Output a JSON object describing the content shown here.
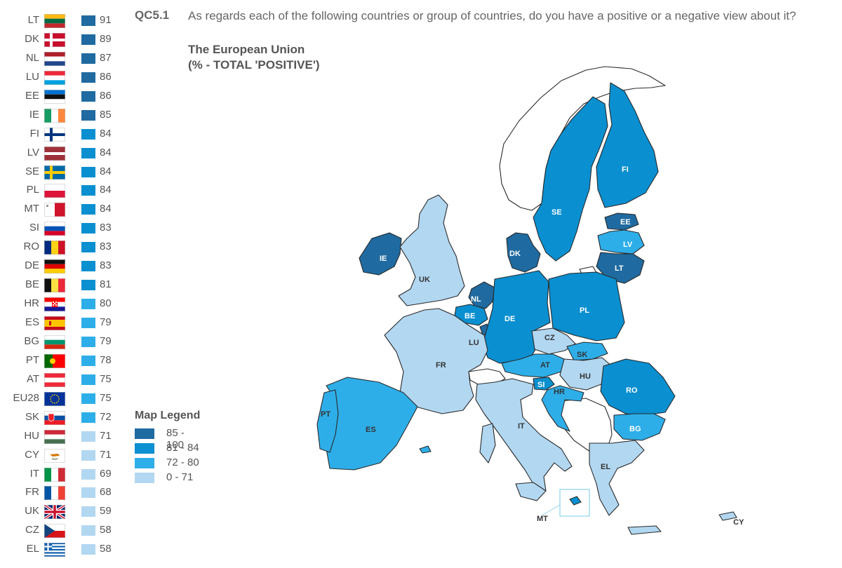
{
  "header": {
    "question_code": "QC5.1",
    "question_text": "As regards each of the following countries or group of countries, do you have a positive or a negative view about it?",
    "subtitle_line1": "The European Union",
    "subtitle_line2": "(% - TOTAL 'POSITIVE')"
  },
  "legend": {
    "title": "Map Legend",
    "items": [
      {
        "label": "85 - 100",
        "color": "#1f6aa0"
      },
      {
        "label": "81 - 84",
        "color": "#0a8fd0"
      },
      {
        "label": "72 - 80",
        "color": "#2eaee8"
      },
      {
        "label": "0 - 71",
        "color": "#b2d7f1"
      }
    ]
  },
  "ranking": [
    {
      "code": "LT",
      "value": "91",
      "flag": "lt",
      "color": "#1f6aa0"
    },
    {
      "code": "DK",
      "value": "89",
      "flag": "dk",
      "color": "#1f6aa0"
    },
    {
      "code": "NL",
      "value": "87",
      "flag": "nl",
      "color": "#1f6aa0"
    },
    {
      "code": "LU",
      "value": "86",
      "flag": "lu",
      "color": "#1f6aa0"
    },
    {
      "code": "EE",
      "value": "86",
      "flag": "ee",
      "color": "#1f6aa0"
    },
    {
      "code": "IE",
      "value": "85",
      "flag": "ie",
      "color": "#1f6aa0"
    },
    {
      "code": "FI",
      "value": "84",
      "flag": "fi",
      "color": "#0a8fd0"
    },
    {
      "code": "LV",
      "value": "84",
      "flag": "lv",
      "color": "#0a8fd0"
    },
    {
      "code": "SE",
      "value": "84",
      "flag": "se",
      "color": "#0a8fd0"
    },
    {
      "code": "PL",
      "value": "84",
      "flag": "pl",
      "color": "#0a8fd0"
    },
    {
      "code": "MT",
      "value": "84",
      "flag": "mt",
      "color": "#0a8fd0"
    },
    {
      "code": "SI",
      "value": "83",
      "flag": "si",
      "color": "#0a8fd0"
    },
    {
      "code": "RO",
      "value": "83",
      "flag": "ro",
      "color": "#0a8fd0"
    },
    {
      "code": "DE",
      "value": "83",
      "flag": "de",
      "color": "#0a8fd0"
    },
    {
      "code": "BE",
      "value": "81",
      "flag": "be",
      "color": "#0a8fd0"
    },
    {
      "code": "HR",
      "value": "80",
      "flag": "hr",
      "color": "#2eaee8"
    },
    {
      "code": "ES",
      "value": "79",
      "flag": "es",
      "color": "#2eaee8"
    },
    {
      "code": "BG",
      "value": "79",
      "flag": "bg",
      "color": "#2eaee8"
    },
    {
      "code": "PT",
      "value": "78",
      "flag": "pt",
      "color": "#2eaee8"
    },
    {
      "code": "AT",
      "value": "75",
      "flag": "at",
      "color": "#2eaee8"
    },
    {
      "code": "EU28",
      "value": "75",
      "flag": "eu",
      "color": "#2eaee8"
    },
    {
      "code": "SK",
      "value": "72",
      "flag": "sk",
      "color": "#2eaee8"
    },
    {
      "code": "HU",
      "value": "71",
      "flag": "hu",
      "color": "#b2d7f1"
    },
    {
      "code": "CY",
      "value": "71",
      "flag": "cy",
      "color": "#b2d7f1"
    },
    {
      "code": "IT",
      "value": "69",
      "flag": "it",
      "color": "#b2d7f1"
    },
    {
      "code": "FR",
      "value": "68",
      "flag": "fr",
      "color": "#b2d7f1"
    },
    {
      "code": "UK",
      "value": "59",
      "flag": "uk",
      "color": "#b2d7f1"
    },
    {
      "code": "CZ",
      "value": "58",
      "flag": "cz",
      "color": "#b2d7f1"
    },
    {
      "code": "EL",
      "value": "58",
      "flag": "el",
      "color": "#b2d7f1"
    }
  ],
  "map_labels": {
    "FI": "FI",
    "SE": "SE",
    "EE": "EE",
    "LV": "LV",
    "LT": "LT",
    "DK": "DK",
    "IE": "IE",
    "UK": "UK",
    "NL": "NL",
    "BE": "BE",
    "LU": "LU",
    "DE": "DE",
    "PL": "PL",
    "CZ": "CZ",
    "SK": "SK",
    "AT": "AT",
    "HU": "HU",
    "SI": "SI",
    "HR": "HR",
    "RO": "RO",
    "BG": "BG",
    "FR": "FR",
    "PT": "PT",
    "ES": "ES",
    "IT": "IT",
    "EL": "EL",
    "MT": "MT",
    "CY": "CY"
  }
}
